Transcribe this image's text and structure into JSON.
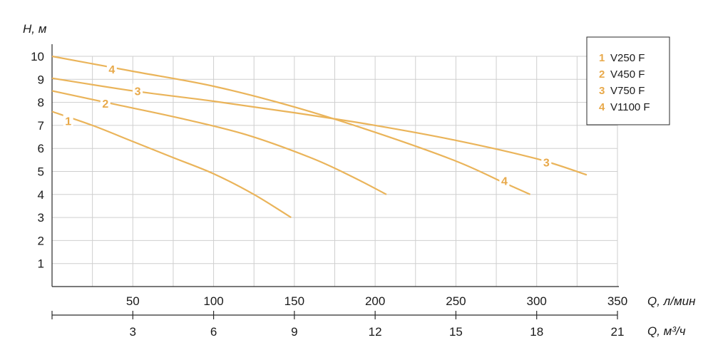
{
  "chart_data": {
    "type": "line",
    "y_title": "H, м",
    "x_title": "Q, л/мин",
    "x2_title": "Q, м³/ч",
    "xlim": [
      0,
      350
    ],
    "ylim": [
      0,
      10
    ],
    "y_ticks": [
      "1",
      "2",
      "3",
      "4",
      "5",
      "6",
      "7",
      "8",
      "9",
      "10"
    ],
    "x_ticks": [
      "50",
      "100",
      "150",
      "200",
      "250",
      "300",
      "350"
    ],
    "x_ticks_values": [
      50,
      100,
      150,
      200,
      250,
      300,
      350
    ],
    "x2_ticks": [
      "3",
      "6",
      "9",
      "12",
      "15",
      "18",
      "21"
    ],
    "x2_ticks_values": [
      3,
      6,
      9,
      12,
      15,
      18,
      21
    ],
    "grid": true,
    "legend_position": "top-right",
    "series": [
      {
        "name": "V250 F",
        "number": "1",
        "points": [
          [
            0,
            7.6
          ],
          [
            25,
            7.0
          ],
          [
            50,
            6.3
          ],
          [
            75,
            5.6
          ],
          [
            100,
            4.9
          ],
          [
            125,
            4.0
          ],
          [
            148,
            3.0
          ]
        ],
        "curve_labels": [
          {
            "text": "1",
            "at": [
              10,
              7.2
            ]
          }
        ]
      },
      {
        "name": "V450 F",
        "number": "2",
        "points": [
          [
            0,
            8.5
          ],
          [
            40,
            7.9
          ],
          [
            80,
            7.3
          ],
          [
            120,
            6.6
          ],
          [
            160,
            5.6
          ],
          [
            185,
            4.8
          ],
          [
            207,
            4.0
          ]
        ],
        "curve_labels": [
          {
            "text": "2",
            "at": [
              33,
              7.95
            ]
          }
        ]
      },
      {
        "name": "V750 F",
        "number": "3",
        "points": [
          [
            0,
            9.05
          ],
          [
            50,
            8.5
          ],
          [
            100,
            8.05
          ],
          [
            150,
            7.55
          ],
          [
            200,
            7.0
          ],
          [
            250,
            6.35
          ],
          [
            300,
            5.55
          ],
          [
            331,
            4.85
          ]
        ],
        "curve_labels": [
          {
            "text": "3",
            "at": [
              53,
              8.5
            ]
          },
          {
            "text": "3",
            "at": [
              306,
              5.4
            ]
          }
        ]
      },
      {
        "name": "V1100 F",
        "number": "4",
        "points": [
          [
            0,
            10.0
          ],
          [
            50,
            9.35
          ],
          [
            100,
            8.7
          ],
          [
            150,
            7.8
          ],
          [
            200,
            6.7
          ],
          [
            250,
            5.45
          ],
          [
            280,
            4.5
          ],
          [
            296,
            4.0
          ]
        ],
        "curve_labels": [
          {
            "text": "4",
            "at": [
              37,
              9.45
            ]
          },
          {
            "text": "4",
            "at": [
              280,
              4.6
            ]
          }
        ]
      }
    ]
  }
}
